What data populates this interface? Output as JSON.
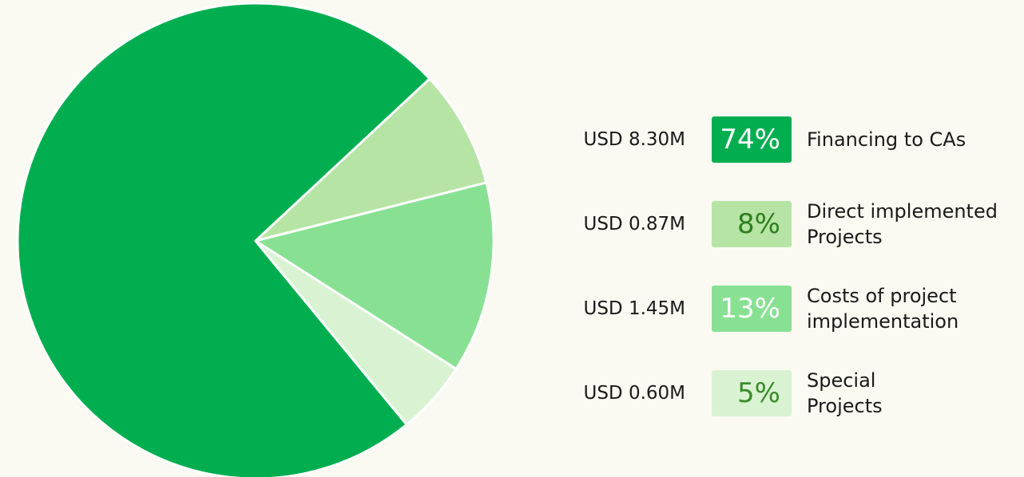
{
  "chart_data": {
    "type": "pie",
    "categories": [
      "Financing to CAs",
      "Direct implemented\nProjects",
      "Costs of project\nimplementation",
      "Special\nProjects"
    ],
    "values": [
      74,
      8,
      13,
      5
    ],
    "value_labels": [
      "74%",
      "8%",
      "13%",
      "5%"
    ],
    "amount_labels": [
      "USD 8.30M",
      "USD 0.87M",
      "USD 1.45M",
      "USD 0.60M"
    ],
    "colors": [
      "#00ae4f",
      "#b6e4a4",
      "#88e193",
      "#d9f3d2"
    ],
    "label_colors": [
      "#ffffff",
      "#2f7d20",
      "#ffffff",
      "#3b8a2a"
    ]
  }
}
